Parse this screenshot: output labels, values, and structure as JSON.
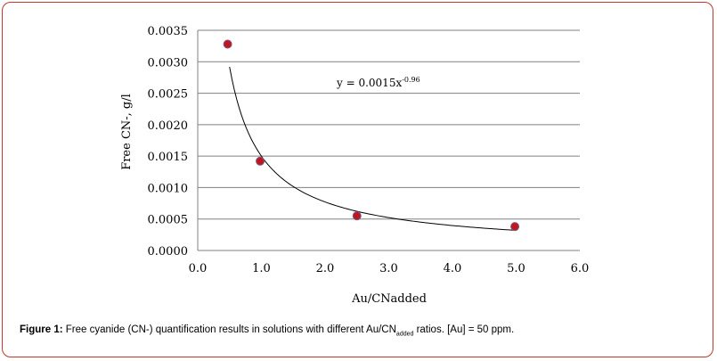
{
  "chart_data": {
    "type": "scatter",
    "xlabel": "Au/CNadded",
    "ylabel": "Free CN-, g/l",
    "xlim": [
      0,
      6
    ],
    "ylim": [
      0,
      0.0035
    ],
    "xticks": [
      "0.0",
      "1.0",
      "2.0",
      "3.0",
      "4.0",
      "5.0",
      "6.0"
    ],
    "yticks": [
      "0.0000",
      "0.0005",
      "0.0010",
      "0.0015",
      "0.0020",
      "0.0025",
      "0.0030",
      "0.0035"
    ],
    "grid": "horizontal",
    "marker_color": "#c0171f",
    "points": [
      {
        "x": 0.47,
        "y": 0.00328
      },
      {
        "x": 0.98,
        "y": 0.00142
      },
      {
        "x": 2.5,
        "y": 0.00055
      },
      {
        "x": 4.98,
        "y": 0.00038
      }
    ],
    "trendline": {
      "coefficient": 0.0015,
      "exponent": -0.96,
      "x_range": [
        0.5,
        5.0
      ],
      "label_base": "y = 0.0015x",
      "label_exp": "-0.96"
    }
  },
  "caption": {
    "prefix": "Figure 1:",
    "text_before_sub": "Free cyanide (CN-) quantification results in solutions with different Au/CN",
    "sub": "added",
    "text_after_sub": " ratios. [Au] = 50 ppm."
  },
  "colors": {
    "border": "#c0392b",
    "marker": "#c0171f",
    "grid": "#808080"
  }
}
